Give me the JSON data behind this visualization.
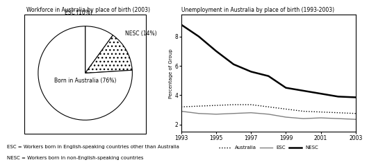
{
  "pie_sizes": [
    10,
    14,
    76
  ],
  "pie_colors": [
    "white",
    "white",
    "white"
  ],
  "pie_title": "Workforce in Australia by place of birth (2003)",
  "line_title": "Unemployment in Australia by place of birth (1993-2003)",
  "ylabel": "Percentage of Group",
  "years": [
    1993,
    1994,
    1995,
    1996,
    1997,
    1998,
    1999,
    2000,
    2001,
    2002,
    2003
  ],
  "australia": [
    3.2,
    3.25,
    3.3,
    3.35,
    3.35,
    3.2,
    3.05,
    2.9,
    2.85,
    2.8,
    2.75
  ],
  "esc": [
    2.9,
    2.75,
    2.7,
    2.75,
    2.8,
    2.7,
    2.5,
    2.4,
    2.45,
    2.4,
    2.35
  ],
  "nesc": [
    8.8,
    8.0,
    7.0,
    6.1,
    5.6,
    5.3,
    4.5,
    4.3,
    4.1,
    3.9,
    3.85
  ],
  "ylim": [
    1.5,
    9.5
  ],
  "yticks": [
    2,
    4,
    6,
    8
  ],
  "xticks": [
    1993,
    1995,
    1997,
    1999,
    2001,
    2003
  ],
  "footnote1": "ESC = Workers born in English-speaking countries other than Australia",
  "footnote2": "NESC = Workers born in non-English-speaking countries"
}
